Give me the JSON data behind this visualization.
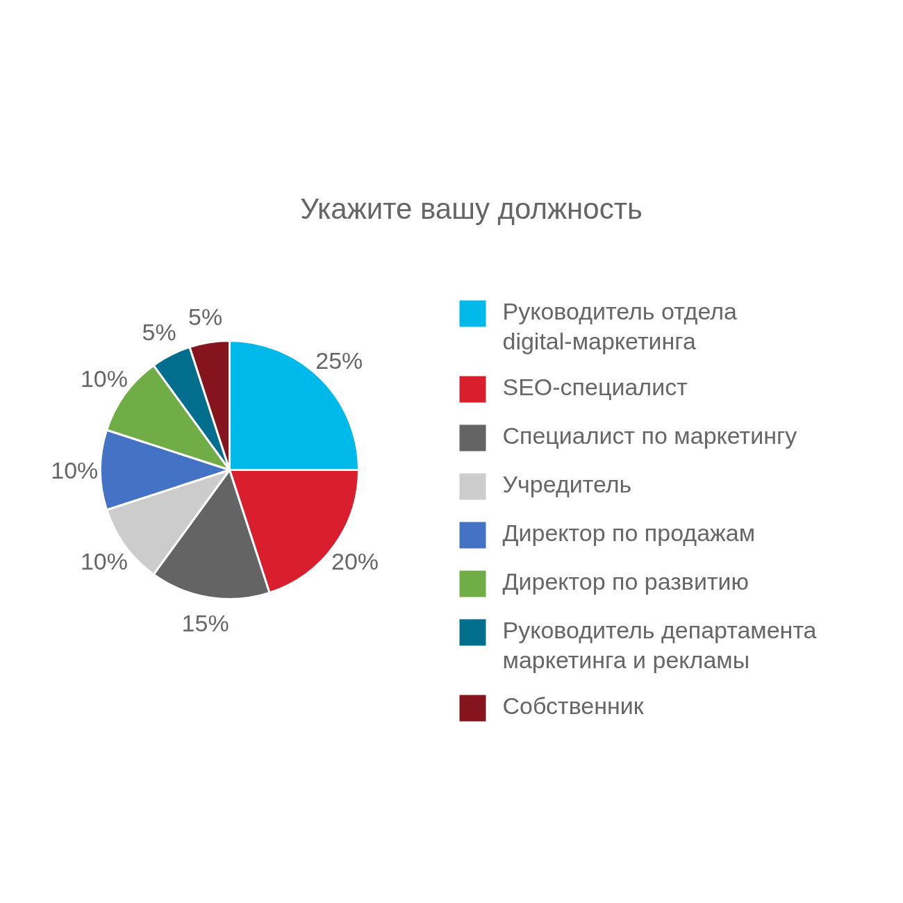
{
  "chart_data": {
    "type": "pie",
    "title": "Укажите вашу должность",
    "categories": [
      "Руководитель отдела digital-маркетинга",
      "SEO-специалист",
      "Специалист по маркетингу",
      "Учредитель",
      "Директор по продажам",
      "Директор по развитию",
      "Руководитель департамента маркетинга и рекламы",
      "Собственник"
    ],
    "values": [
      25,
      20,
      15,
      10,
      10,
      10,
      5,
      5
    ],
    "value_labels": [
      "25%",
      "20%",
      "15%",
      "10%",
      "10%",
      "10%",
      "5%",
      "5%"
    ],
    "colors": [
      "#00b9eb",
      "#d91f2e",
      "#646464",
      "#cccccc",
      "#4472c4",
      "#70ad47",
      "#006e8c",
      "#85141e"
    ],
    "legend": "right"
  }
}
